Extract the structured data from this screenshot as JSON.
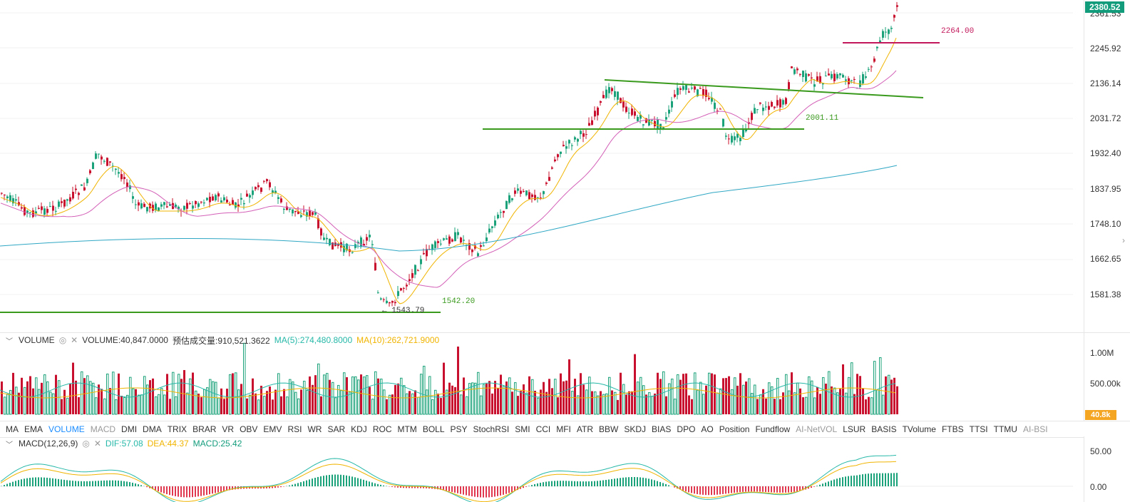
{
  "price_axis": {
    "ticks": [
      "2361.53",
      "2245.92",
      "2136.14",
      "2031.72",
      "1932.40",
      "1837.95",
      "1748.10",
      "1662.65",
      "1581.38"
    ],
    "current_price": "2380.52",
    "current_color": "#139c7c"
  },
  "annotations": {
    "level_2264": "2264.00",
    "level_2001": "2001.11",
    "level_1542": "1542.20",
    "low_marker": "← 1543.79"
  },
  "volume": {
    "name": "VOLUME",
    "value": "VOLUME:40,847.0000",
    "estimate": "预估成交量:910,521.3622",
    "ma5": "MA(5):274,480.8000",
    "ma10": "MA(10):262,721.9000",
    "ticks": [
      "1.00M",
      "500.00k"
    ],
    "current": "40.8k",
    "colors": {
      "ma5": "#26b8a8",
      "ma10": "#f0b400"
    }
  },
  "indicators": {
    "items": [
      "MA",
      "EMA",
      "VOLUME",
      "MACD",
      "DMI",
      "DMA",
      "TRIX",
      "BRAR",
      "VR",
      "OBV",
      "EMV",
      "RSI",
      "WR",
      "SAR",
      "KDJ",
      "ROC",
      "MTM",
      "BOLL",
      "PSY",
      "StochRSI",
      "SMI",
      "CCI",
      "MFI",
      "ATR",
      "BBW",
      "SKDJ",
      "BIAS",
      "DPO",
      "AO",
      "Position",
      "Fundflow",
      "AI-NetVOL",
      "LSUR",
      "BASIS",
      "TVolume",
      "FTBS",
      "TTSI",
      "TTMU",
      "AI-BSI"
    ],
    "active": "VOLUME"
  },
  "macd": {
    "name": "MACD(12,26,9)",
    "dif": "DIF:57.08",
    "dea": "DEA:44.37",
    "macd": "MACD:25.42",
    "ticks": [
      "50.00",
      "0.00"
    ],
    "colors": {
      "dif": "#26b8a8",
      "dea": "#f0b400",
      "macd": "#139c7c"
    }
  },
  "colors": {
    "up": "#1ba27a",
    "down": "#c8102e",
    "ma_short": "#f0b400",
    "ma_mid": "#d35fb7",
    "ma_long": "#2fa7c4",
    "trend": "#3a9a1e",
    "resistance": "#c2185b"
  }
}
